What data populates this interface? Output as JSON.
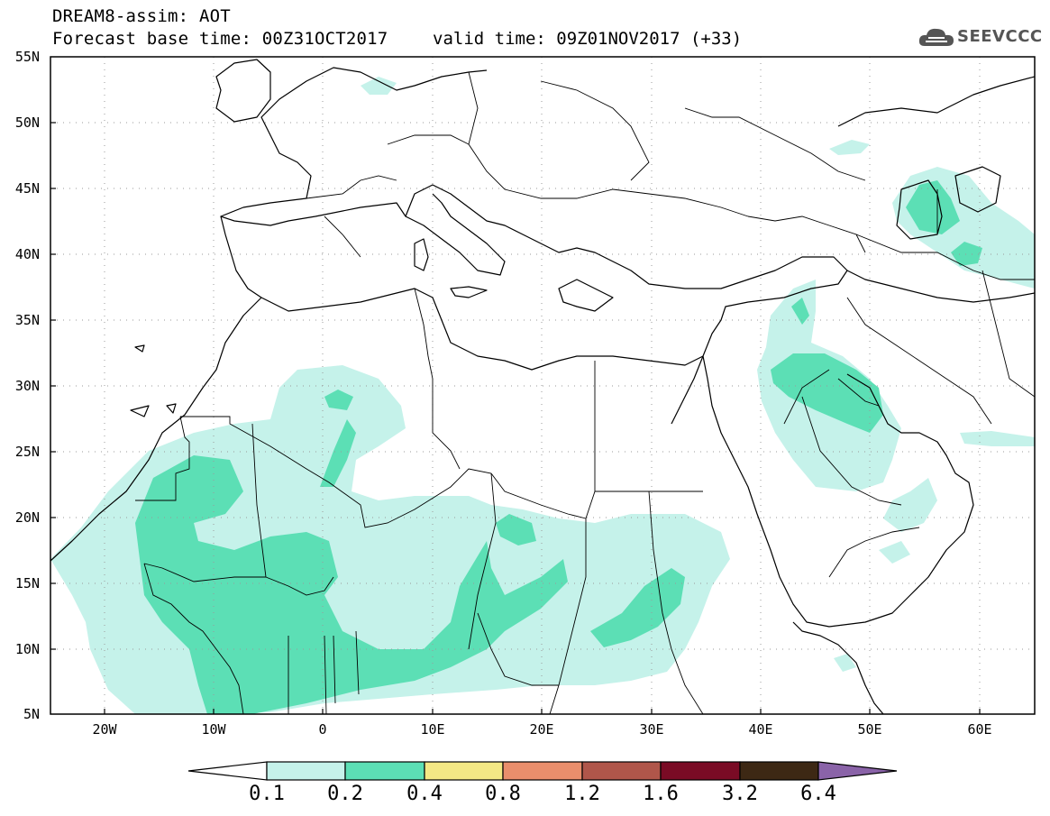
{
  "header": {
    "title_line1": "DREAM8-assim: AOT",
    "title_line2": "Forecast base time: 00Z31OCT2017",
    "valid_time": "valid time: 09Z01NOV2017 (+33)",
    "logo_text": "SEEVCCC"
  },
  "map": {
    "lon_range": [
      -25,
      65
    ],
    "lat_range": [
      5,
      55
    ],
    "lat_labels": [
      "55N",
      "50N",
      "45N",
      "40N",
      "35N",
      "30N",
      "25N",
      "20N",
      "15N",
      "10N",
      "5N"
    ],
    "lon_labels": [
      "20W",
      "10W",
      "0",
      "10E",
      "20E",
      "30E",
      "40E",
      "50E",
      "60E"
    ],
    "grid": "dotted"
  },
  "colorbar": {
    "labels": [
      "0.1",
      "0.2",
      "0.4",
      "0.8",
      "1.2",
      "1.6",
      "3.2",
      "6.4"
    ],
    "colors": [
      "#c5f2ea",
      "#5cdfb5",
      "#f4e885",
      "#e98e6c",
      "#b0564a",
      "#7a0b25",
      "#3d2814",
      "#8a63a8"
    ]
  }
}
